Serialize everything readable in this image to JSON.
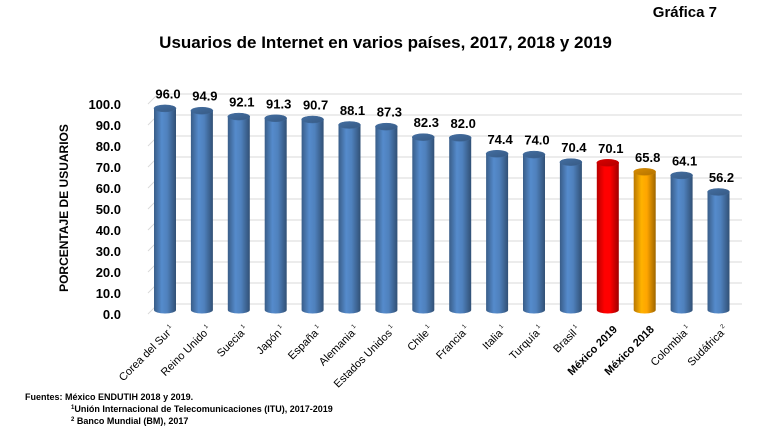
{
  "header": {
    "figure_label": "Gráfica 7"
  },
  "chart_data": {
    "type": "bar",
    "style": "3d-cylinder",
    "title": "Usuarios de Internet en varios países, 2017, 2018 y 2019",
    "xlabel": "",
    "ylabel": "PORCENTAJE DE USUARIOS",
    "ylim": [
      0,
      100
    ],
    "yticks": [
      "0.0",
      "10.0",
      "20.0",
      "30.0",
      "40.0",
      "50.0",
      "60.0",
      "70.0",
      "80.0",
      "90.0",
      "100.0"
    ],
    "grid": true,
    "legend": "none",
    "categories": [
      {
        "label": "Corea del Sur",
        "sup": "1",
        "bold": false
      },
      {
        "label": "Reino Unido",
        "sup": "1",
        "bold": false
      },
      {
        "label": "Suecia",
        "sup": "1",
        "bold": false
      },
      {
        "label": "Japón",
        "sup": "1",
        "bold": false
      },
      {
        "label": "España",
        "sup": "1",
        "bold": false
      },
      {
        "label": "Alemania",
        "sup": "1",
        "bold": false
      },
      {
        "label": "Estados Unidos",
        "sup": "1",
        "bold": false
      },
      {
        "label": "Chile",
        "sup": "1",
        "bold": false
      },
      {
        "label": "Francia",
        "sup": "1",
        "bold": false
      },
      {
        "label": "Italia",
        "sup": "1",
        "bold": false
      },
      {
        "label": "Turquía",
        "sup": "1",
        "bold": false
      },
      {
        "label": "Brasil",
        "sup": "1",
        "bold": false
      },
      {
        "label": "México 2019",
        "sup": "",
        "bold": true
      },
      {
        "label": "México 2018",
        "sup": "",
        "bold": true
      },
      {
        "label": "Colombia",
        "sup": "1",
        "bold": false
      },
      {
        "label": "Sudáfrica",
        "sup": "2",
        "bold": false
      }
    ],
    "values": [
      96.0,
      94.9,
      92.1,
      91.3,
      90.7,
      88.1,
      87.3,
      82.3,
      82.0,
      74.4,
      74.0,
      70.4,
      70.1,
      65.8,
      64.1,
      56.2
    ],
    "value_labels": [
      "96.0",
      "94.9",
      "92.1",
      "91.3",
      "90.7",
      "88.1",
      "87.3",
      "82.3",
      "82.0",
      "74.4",
      "74.0",
      "70.4",
      "70.1",
      "65.8",
      "64.1",
      "56.2"
    ],
    "bar_colors": [
      "#4f81bd",
      "#4f81bd",
      "#4f81bd",
      "#4f81bd",
      "#4f81bd",
      "#4f81bd",
      "#4f81bd",
      "#4f81bd",
      "#4f81bd",
      "#4f81bd",
      "#4f81bd",
      "#4f81bd",
      "#ff0000",
      "#ffa500",
      "#4f81bd",
      "#4f81bd"
    ]
  },
  "sources": {
    "heading": "Fuentes:",
    "line1": "México ENDUTIH 2018 y 2019.",
    "line2_sup": "1",
    "line2": "Unión Internacional de Telecomunicaciones (ITU), 2017-2019",
    "line3_sup": "2",
    "line3": " Banco Mundial (BM), 2017"
  }
}
